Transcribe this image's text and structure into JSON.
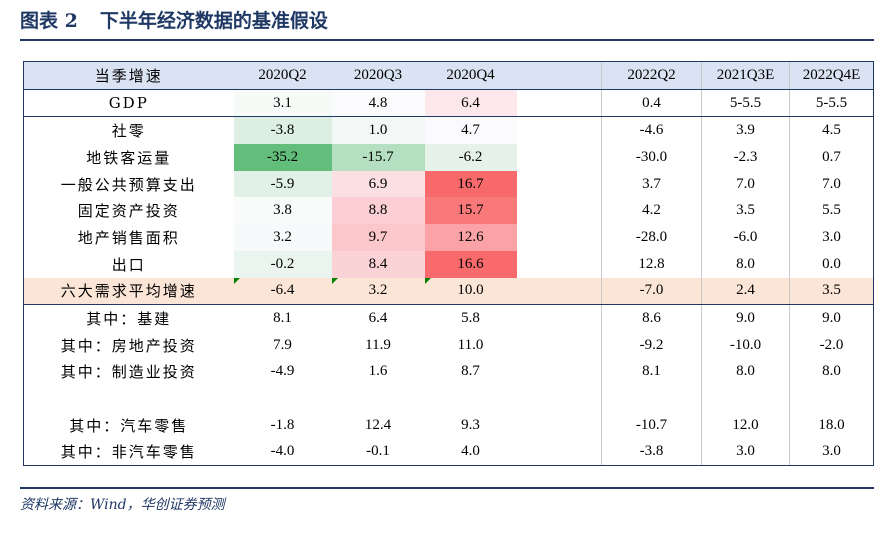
{
  "title": {
    "number": "图表 2",
    "text": "下半年经济数据的基准假设"
  },
  "source": "资料来源：Wind，华创证券预测",
  "header": [
    "当季增速",
    "2020Q2",
    "2020Q3",
    "2020Q4",
    "",
    "2022Q2",
    "2021Q3E",
    "2022Q4E"
  ],
  "rows": [
    {
      "label": "GDP",
      "v": [
        "3.1",
        "4.8",
        "6.4",
        "",
        "0.4",
        "5-5.5",
        "5-5.5"
      ],
      "bg": [
        "#f7fbf8",
        "#fbfbfd",
        "#fce8ea",
        "#ffffff",
        "#ffffff",
        "#ffffff",
        "#ffffff"
      ]
    },
    {
      "label": "社零",
      "v": [
        "-3.8",
        "1.0",
        "4.7",
        "",
        "-4.6",
        "3.9",
        "4.5"
      ],
      "bg": [
        "#dcefe2",
        "#f3f8f6",
        "#fbfbfd",
        "#ffffff",
        "#ffffff",
        "#ffffff",
        "#ffffff"
      ]
    },
    {
      "label": "地铁客运量",
      "v": [
        "-35.2",
        "-15.7",
        "-6.2",
        "",
        "-30.0",
        "-2.3",
        "0.7"
      ],
      "bg": [
        "#63be7b",
        "#b4dfc0",
        "#e4f2e9",
        "#ffffff",
        "#ffffff",
        "#ffffff",
        "#ffffff"
      ]
    },
    {
      "label": "一般公共预算支出",
      "v": [
        "-5.9",
        "6.9",
        "16.7",
        "",
        "3.7",
        "7.0",
        "7.0"
      ],
      "bg": [
        "#e2f1e7",
        "#fbdfe2",
        "#f8696b",
        "#ffffff",
        "#ffffff",
        "#ffffff",
        "#ffffff"
      ]
    },
    {
      "label": "固定资产投资",
      "v": [
        "3.8",
        "8.8",
        "15.7",
        "",
        "4.2",
        "3.5",
        "5.5"
      ],
      "bg": [
        "#f8fbfa",
        "#fbcfd3",
        "#f9797b",
        "#ffffff",
        "#ffffff",
        "#ffffff",
        "#ffffff"
      ]
    },
    {
      "label": "地产销售面积",
      "v": [
        "3.2",
        "9.7",
        "12.6",
        "",
        "-28.0",
        "-6.0",
        "3.0"
      ],
      "bg": [
        "#f6fafa",
        "#fbc7cb",
        "#faa2a5",
        "#ffffff",
        "#ffffff",
        "#ffffff",
        "#ffffff"
      ]
    },
    {
      "label": "出口",
      "v": [
        "-0.2",
        "8.4",
        "16.6",
        "",
        "12.8",
        "8.0",
        "0.0"
      ],
      "bg": [
        "#eaf5ef",
        "#fbd2d6",
        "#f86a6c",
        "#ffffff",
        "#ffffff",
        "#ffffff",
        "#ffffff"
      ]
    },
    {
      "label": "六大需求平均增速",
      "v": [
        "-6.4",
        "3.2",
        "10.0",
        "",
        "-7.0",
        "2.4",
        "3.5"
      ],
      "bg": [
        "#fbe5d6",
        "#fbe5d6",
        "#fbe5d6",
        "#fbe5d6",
        "#fbe5d6",
        "#fbe5d6",
        "#fbe5d6"
      ]
    },
    {
      "label": "其中：基建",
      "v": [
        "8.1",
        "6.4",
        "5.8",
        "",
        "8.6",
        "9.0",
        "9.0"
      ],
      "bg": [
        "#ffffff",
        "#ffffff",
        "#ffffff",
        "#ffffff",
        "#ffffff",
        "#ffffff",
        "#ffffff"
      ]
    },
    {
      "label": "其中：房地产投资",
      "v": [
        "7.9",
        "11.9",
        "11.0",
        "",
        "-9.2",
        "-10.0",
        "-2.0"
      ],
      "bg": [
        "#ffffff",
        "#ffffff",
        "#ffffff",
        "#ffffff",
        "#ffffff",
        "#ffffff",
        "#ffffff"
      ]
    },
    {
      "label": "其中：制造业投资",
      "v": [
        "-4.9",
        "1.6",
        "8.7",
        "",
        "8.1",
        "8.0",
        "8.0"
      ],
      "bg": [
        "#ffffff",
        "#ffffff",
        "#ffffff",
        "#ffffff",
        "#ffffff",
        "#ffffff",
        "#ffffff"
      ]
    },
    {
      "label": "",
      "v": [
        "",
        "",
        "",
        "",
        "",
        "",
        ""
      ],
      "bg": [
        "#ffffff",
        "#ffffff",
        "#ffffff",
        "#ffffff",
        "#ffffff",
        "#ffffff",
        "#ffffff"
      ]
    },
    {
      "label": "其中：汽车零售",
      "v": [
        "-1.8",
        "12.4",
        "9.3",
        "",
        "-10.7",
        "12.0",
        "18.0"
      ],
      "bg": [
        "#ffffff",
        "#ffffff",
        "#ffffff",
        "#ffffff",
        "#ffffff",
        "#ffffff",
        "#ffffff"
      ]
    },
    {
      "label": "其中：非汽车零售",
      "v": [
        "-4.0",
        "-0.1",
        "4.0",
        "",
        "-3.8",
        "3.0",
        "3.0"
      ],
      "bg": [
        "#ffffff",
        "#ffffff",
        "#ffffff",
        "#ffffff",
        "#ffffff",
        "#ffffff",
        "#ffffff"
      ]
    }
  ],
  "colors": {
    "title": "#1f3864",
    "header_bg": "#dae3f3",
    "avg_bg": "#fbe5d6",
    "marker": "#008000"
  }
}
